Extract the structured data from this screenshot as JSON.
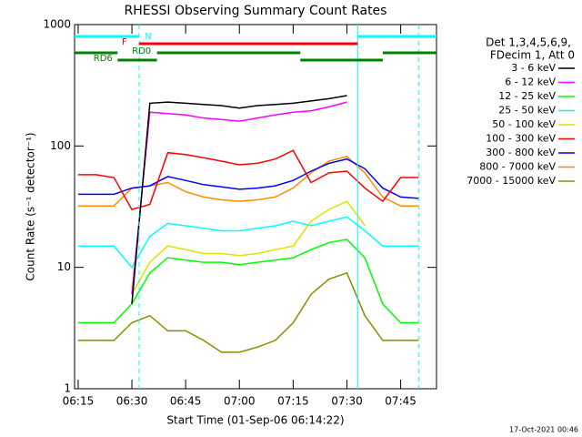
{
  "chart_data": {
    "type": "line",
    "title": "RHESSI Observing Summary Count Rates",
    "xlabel": "Start Time (01-Sep-06 06:14:22)",
    "ylabel": "Count Rate (s⁻¹ detector⁻¹)",
    "legend_header": [
      "Det 1,3,4,5,6,9,",
      "FDecim 1, Att 0"
    ],
    "footer": "17-Oct-2021 00:46",
    "log_y": true,
    "xlim": [
      "06:14",
      "07:55"
    ],
    "xticks": [
      "06:15",
      "06:30",
      "06:45",
      "07:00",
      "07:15",
      "07:30",
      "07:45"
    ],
    "ylim": [
      1,
      1000
    ],
    "yticks": [
      1,
      10,
      100,
      1000
    ],
    "x": [
      "06:15",
      "06:20",
      "06:25",
      "06:30",
      "06:35",
      "06:40",
      "06:45",
      "06:50",
      "06:55",
      "07:00",
      "07:05",
      "07:10",
      "07:15",
      "07:20",
      "07:25",
      "07:30",
      "07:35",
      "07:40",
      "07:45",
      "07:50"
    ],
    "series": [
      {
        "name": "3 - 6 keV",
        "color": "#000000",
        "values": [
          null,
          null,
          null,
          5,
          225,
          230,
          225,
          220,
          215,
          205,
          215,
          220,
          225,
          235,
          245,
          260,
          null,
          null,
          null,
          null
        ]
      },
      {
        "name": "6 - 12 keV",
        "color": "#ff00ff",
        "values": [
          null,
          null,
          null,
          6,
          190,
          185,
          180,
          170,
          165,
          160,
          170,
          180,
          190,
          195,
          210,
          230,
          null,
          null,
          null,
          null
        ]
      },
      {
        "name": "12 - 25 keV",
        "color": "#00ff00",
        "values": [
          3.5,
          3.5,
          3.5,
          5,
          9,
          12,
          11.5,
          11,
          11,
          10.5,
          11,
          11.5,
          12,
          14,
          16,
          17,
          12,
          5,
          3.5,
          3.5
        ]
      },
      {
        "name": "25 - 50 keV",
        "color": "#00ffff",
        "values": [
          15,
          15,
          15,
          10,
          18,
          23,
          22,
          21,
          20,
          20,
          21,
          22,
          24,
          22,
          24,
          26,
          20,
          15,
          15,
          15
        ]
      },
      {
        "name": "50 - 100 keV",
        "color": "#e0e000",
        "values": [
          null,
          null,
          null,
          6,
          11,
          15,
          14,
          13,
          13,
          12.5,
          13,
          14,
          15,
          24,
          30,
          35,
          22,
          null,
          null,
          null
        ]
      },
      {
        "name": "100 - 300 keV",
        "color": "#ff0000",
        "values": [
          58,
          58,
          55,
          30,
          33,
          88,
          85,
          80,
          75,
          70,
          72,
          78,
          92,
          50,
          60,
          62,
          45,
          35,
          55,
          55
        ]
      },
      {
        "name": "300 - 800 keV",
        "color": "#0000ff",
        "values": [
          40,
          40,
          40,
          45,
          47,
          56,
          52,
          48,
          46,
          44,
          45,
          47,
          52,
          62,
          72,
          78,
          65,
          45,
          38,
          37
        ]
      },
      {
        "name": "800 - 7000 keV",
        "color": "#ff8c00",
        "values": [
          32,
          32,
          32,
          45,
          47,
          50,
          42,
          38,
          36,
          35,
          36,
          38,
          45,
          60,
          75,
          82,
          60,
          38,
          32,
          32
        ]
      },
      {
        "name": "7000 - 15000 keV",
        "color": "#8b8b00",
        "values": [
          2.5,
          2.5,
          2.5,
          3.5,
          4,
          3,
          3,
          2.5,
          2,
          2,
          2.2,
          2.5,
          3.5,
          6,
          8,
          9,
          4,
          2.5,
          2.5,
          2.5
        ]
      }
    ],
    "flags": [
      {
        "label": "N",
        "color": "#00ffff",
        "intervals": [
          [
            "06:14",
            "06:32"
          ],
          [
            "07:33",
            "07:55"
          ]
        ]
      },
      {
        "label": "F",
        "color": "#ff0000",
        "intervals": [
          [
            "06:32",
            "07:33"
          ]
        ]
      },
      {
        "label": "RD0",
        "color": "#008000",
        "intervals": [
          [
            "06:14",
            "06:26"
          ],
          [
            "06:37",
            "07:17"
          ],
          [
            "07:40",
            "07:55"
          ]
        ]
      },
      {
        "label": "RD6",
        "color": "#008000",
        "intervals": [
          [
            "06:26",
            "06:37"
          ],
          [
            "07:17",
            "07:40"
          ]
        ]
      }
    ],
    "vlines": [
      {
        "x": "06:32",
        "dashed": true,
        "color": "#00ffff"
      },
      {
        "x": "07:33",
        "dashed": false,
        "color": "#00ffff"
      },
      {
        "x": "07:50",
        "dashed": true,
        "color": "#00ffff"
      }
    ]
  }
}
